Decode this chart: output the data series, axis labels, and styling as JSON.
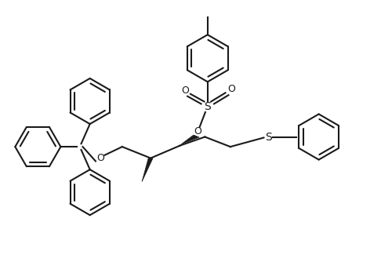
{
  "bg_color": "#ffffff",
  "line_color": "#1a1a1a",
  "line_width": 1.5,
  "fig_width": 4.86,
  "fig_height": 3.34,
  "dpi": 100,
  "xlim": [
    0,
    10
  ],
  "ylim": [
    0,
    6.87
  ]
}
